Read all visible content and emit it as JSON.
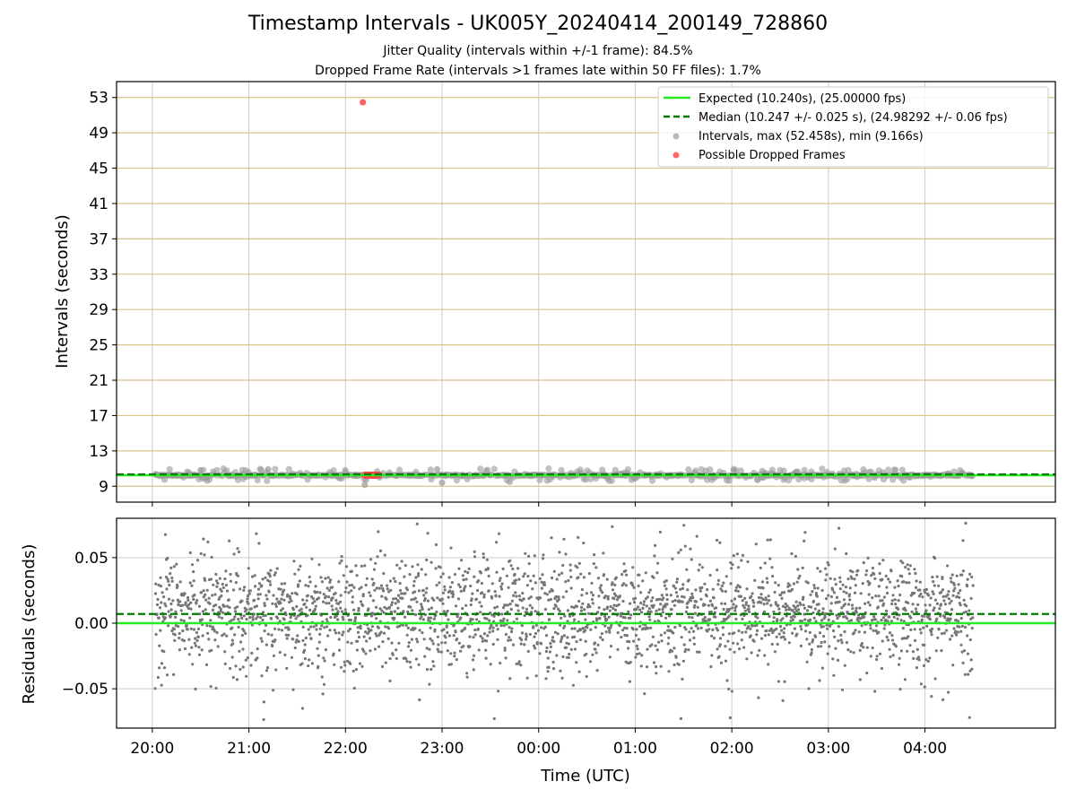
{
  "chart_data": [
    {
      "type": "scatter",
      "title": "Timestamp Intervals - UK005Y_20240414_200149_728860",
      "subtitle_jitter": "Jitter Quality (intervals within +/-1 frame): 84.5%",
      "subtitle_dropped": "Dropped Frame Rate (intervals >1 frames late within 50 FF files): 1.7%",
      "xlabel": "Time (UTC)",
      "ylabel": "Intervals (seconds)",
      "xlim_hours": [
        -0.37,
        9.35
      ],
      "ylim": [
        7.2,
        54.8
      ],
      "yticks": [
        "9",
        "13",
        "17",
        "21",
        "25",
        "29",
        "33",
        "37",
        "41",
        "45",
        "49",
        "53"
      ],
      "ytick_values": [
        9,
        13,
        17,
        21,
        25,
        29,
        33,
        37,
        41,
        45,
        49,
        53
      ],
      "xticks": [
        "20:00",
        "21:00",
        "22:00",
        "23:00",
        "00:00",
        "01:00",
        "02:00",
        "03:00",
        "04:00"
      ],
      "xtick_hours": [
        0,
        1,
        2,
        3,
        4,
        5,
        6,
        7,
        8
      ],
      "data_start_hour": 0.03,
      "data_end_hour": 8.5,
      "expected_interval": 10.24,
      "median_interval": 10.247,
      "max_interval": 52.458,
      "min_interval": 9.166,
      "dropped_frames_cluster_hours": [
        2.2,
        2.35
      ],
      "dropped_frames_cluster_value": 10.26,
      "dropped_outlier": {
        "hour": 2.18,
        "value": 52.458
      },
      "legend": [
        {
          "label": "Expected (10.240s), (25.00000 fps)",
          "style": "solid",
          "color": "#22ee22"
        },
        {
          "label": "Median (10.247 +/- 0.025 s), (24.98292 +/- 0.06 fps)",
          "style": "dashed",
          "color": "#007a00"
        },
        {
          "label": "Intervals, max (52.458s), min (9.166s)",
          "style": "marker",
          "color": "#999999"
        },
        {
          "label": "Possible Dropped Frames",
          "style": "marker",
          "color": "#ff4444"
        }
      ],
      "legend_position": "top-right"
    },
    {
      "type": "scatter",
      "xlabel": "Time (UTC)",
      "ylabel": "Residuals (seconds)",
      "ylim": [
        -0.08,
        0.08
      ],
      "yticks": [
        "−0.05",
        "0.00",
        "0.05"
      ],
      "ytick_values": [
        -0.05,
        0.0,
        0.05
      ],
      "expected_residual": 0.0,
      "median_residual": 0.007,
      "residual_spread_sd": 0.025,
      "residual_mean_offset": 0.008,
      "point_count": 2600,
      "point_color": "#777777"
    }
  ],
  "colors": {
    "grid_top": "#d9c48a",
    "grid_vertical": "#cccccc",
    "expected": "#22ee22",
    "median": "#007a00",
    "interval_marker": "#999999",
    "dropped_marker": "#ff4444"
  }
}
